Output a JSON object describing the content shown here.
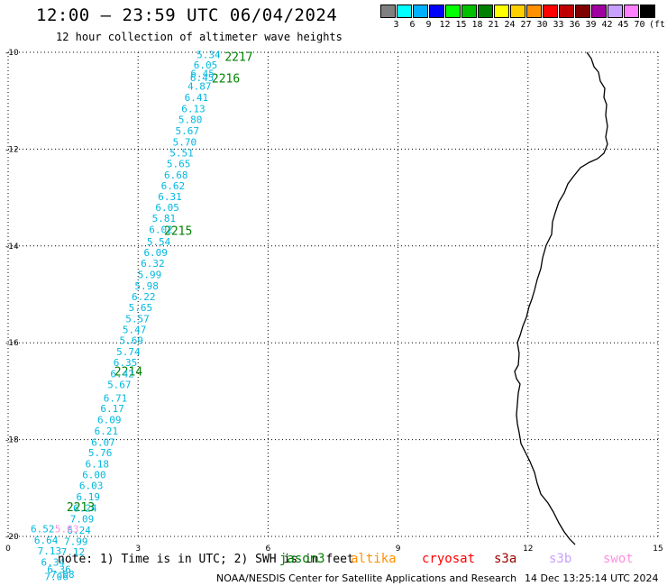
{
  "header": {
    "title": "12:00 — 23:59 UTC 06/04/2024",
    "subtitle": "12 hour collection of altimeter wave heights"
  },
  "legend": {
    "colors": [
      "#808080",
      "#00ffff",
      "#00b0ff",
      "#0000ff",
      "#00ff00",
      "#00c000",
      "#008000",
      "#ffff00",
      "#ffd000",
      "#ff9000",
      "#ff0000",
      "#c00000",
      "#800000",
      "#a000a0",
      "#c8a0ff",
      "#ff80ff",
      "#000000"
    ],
    "labels": [
      "3",
      "6",
      "9",
      "12",
      "15",
      "18",
      "21",
      "24",
      "27",
      "30",
      "33",
      "36",
      "39",
      "42",
      "45",
      "70"
    ],
    "unit": "(ft)"
  },
  "axes": {
    "x_ticks": [
      "0",
      "3",
      "6",
      "9",
      "12",
      "15"
    ],
    "y_ticks": [
      "-10",
      "-12",
      "-14",
      "-16",
      "-18",
      "-20"
    ]
  },
  "chart_data": {
    "type": "scatter",
    "xlim": [
      0,
      15
    ],
    "ylim": [
      -20,
      -10
    ],
    "grid": true,
    "track_labels": [
      {
        "text": "2217",
        "x": 5.0,
        "y": -10.1
      },
      {
        "text": "2216",
        "x": 4.7,
        "y": -10.55
      },
      {
        "text": "2215",
        "x": 3.6,
        "y": -13.7
      },
      {
        "text": "2214",
        "x": 2.45,
        "y": -16.6
      },
      {
        "text": "2213",
        "x": 1.35,
        "y": -19.4
      }
    ],
    "wave_heights": [
      {
        "v": "5.34",
        "x": 4.35,
        "y": -10.05
      },
      {
        "v": "6.05",
        "x": 4.28,
        "y": -10.26
      },
      {
        "v": "6.45",
        "x": 4.21,
        "y": -10.44
      },
      {
        "v": "6.45",
        "x": 4.2,
        "y": -10.52
      },
      {
        "v": "4.87",
        "x": 4.14,
        "y": -10.7
      },
      {
        "v": "6.41",
        "x": 4.07,
        "y": -10.93
      },
      {
        "v": "6.13",
        "x": 4.0,
        "y": -11.16
      },
      {
        "v": "5.80",
        "x": 3.93,
        "y": -11.39
      },
      {
        "v": "5.67",
        "x": 3.86,
        "y": -11.62
      },
      {
        "v": "5.70",
        "x": 3.8,
        "y": -11.85
      },
      {
        "v": "5.51",
        "x": 3.73,
        "y": -12.08
      },
      {
        "v": "5.65",
        "x": 3.66,
        "y": -12.3
      },
      {
        "v": "6.68",
        "x": 3.6,
        "y": -12.53
      },
      {
        "v": "6.62",
        "x": 3.53,
        "y": -12.76
      },
      {
        "v": "6.31",
        "x": 3.46,
        "y": -12.98
      },
      {
        "v": "6.05",
        "x": 3.4,
        "y": -13.2
      },
      {
        "v": "5.81",
        "x": 3.32,
        "y": -13.43
      },
      {
        "v": "6.02",
        "x": 3.25,
        "y": -13.66
      },
      {
        "v": "5.54",
        "x": 3.2,
        "y": -13.91
      },
      {
        "v": "6.09",
        "x": 3.13,
        "y": -14.13
      },
      {
        "v": "6.32",
        "x": 3.06,
        "y": -14.36
      },
      {
        "v": "5.99",
        "x": 2.99,
        "y": -14.59
      },
      {
        "v": "5.98",
        "x": 2.92,
        "y": -14.82
      },
      {
        "v": "6.22",
        "x": 2.85,
        "y": -15.05
      },
      {
        "v": "5.65",
        "x": 2.78,
        "y": -15.27
      },
      {
        "v": "5.57",
        "x": 2.71,
        "y": -15.5
      },
      {
        "v": "5.47",
        "x": 2.64,
        "y": -15.73
      },
      {
        "v": "5.69",
        "x": 2.57,
        "y": -15.95
      },
      {
        "v": "5.74",
        "x": 2.5,
        "y": -16.18
      },
      {
        "v": "6.35",
        "x": 2.43,
        "y": -16.41
      },
      {
        "v": "6.42",
        "x": 2.36,
        "y": -16.64
      },
      {
        "v": "5.67",
        "x": 2.29,
        "y": -16.86
      },
      {
        "v": "6.71",
        "x": 2.2,
        "y": -17.14
      },
      {
        "v": "6.17",
        "x": 2.13,
        "y": -17.36
      },
      {
        "v": "6.09",
        "x": 2.06,
        "y": -17.59
      },
      {
        "v": "6.21",
        "x": 1.99,
        "y": -17.82
      },
      {
        "v": "6.07",
        "x": 1.92,
        "y": -18.05
      },
      {
        "v": "5.76",
        "x": 1.85,
        "y": -18.27
      },
      {
        "v": "6.18",
        "x": 1.78,
        "y": -18.5
      },
      {
        "v": "6.00",
        "x": 1.71,
        "y": -18.72
      },
      {
        "v": "6.03",
        "x": 1.64,
        "y": -18.95
      },
      {
        "v": "6.19",
        "x": 1.57,
        "y": -19.18
      },
      {
        "v": "6.24",
        "x": 1.5,
        "y": -19.41
      },
      {
        "v": "7.09",
        "x": 1.43,
        "y": -19.64
      },
      {
        "v": "6.52",
        "x": 0.52,
        "y": -19.84
      },
      {
        "v": "6.24",
        "x": 1.36,
        "y": -19.87
      },
      {
        "v": "6.64",
        "x": 0.6,
        "y": -20.07
      },
      {
        "v": "7.99",
        "x": 1.29,
        "y": -20.1
      },
      {
        "v": "7.13",
        "x": 0.68,
        "y": -20.3
      },
      {
        "v": "7.12",
        "x": 1.22,
        "y": -20.32
      },
      {
        "v": "6.34",
        "x": 0.76,
        "y": -20.53
      },
      {
        "v": "6.36",
        "x": 0.9,
        "y": -20.68
      },
      {
        "v": "7.08",
        "x": 0.98,
        "y": -20.78
      },
      {
        "v": "7.06",
        "x": 0.84,
        "y": -20.83
      }
    ],
    "overlay_labels": [
      {
        "text": "5.63",
        "x": 1.08,
        "y": -19.84
      }
    ]
  },
  "footer": {
    "note": "note: 1) Time is in UTC; 2) SWH is in feet",
    "satellites": [
      {
        "name": "jason3",
        "color": "#008000"
      },
      {
        "name": "altika",
        "color": "#ff9000"
      },
      {
        "name": "cryosat",
        "color": "#ff0000"
      },
      {
        "name": "s3a",
        "color": "#a00000"
      },
      {
        "name": "s3b",
        "color": "#c8a0ff"
      },
      {
        "name": "swot",
        "color": "#ff90e0"
      }
    ],
    "credit": "NOAA/NESDIS Center for Satellite Applications and Research",
    "timestamp": "14 Dec 13:25:14 UTC 2024"
  }
}
